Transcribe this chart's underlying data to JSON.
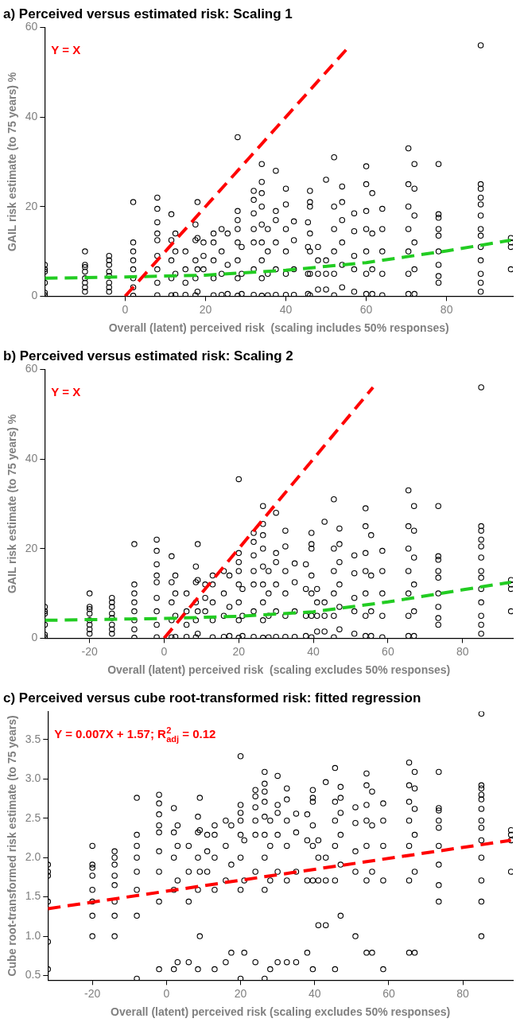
{
  "chart_data": [
    {
      "type": "scatter",
      "title": "a) Perceived versus estimated risk: Scaling 1",
      "xlabel": "Overall (latent) perceived risk  (scaling includes 50% responses)",
      "ylabel": "GAIL risk estimate (to 75 years) %",
      "annotations": [
        "Y = X"
      ],
      "xlim": [
        -20,
        96.5
      ],
      "ylim": [
        0,
        60
      ],
      "xticks": [
        0,
        20,
        40,
        60,
        80
      ],
      "yticks": [
        0,
        20,
        40,
        60
      ],
      "marker": "circle",
      "series": [
        {
          "type": "scatter",
          "color": "#000000",
          "x": [
            -20,
            -20,
            -20,
            -20,
            -20,
            -20,
            -10,
            -10,
            -10,
            -10,
            -10,
            -10,
            -10,
            -10,
            -4,
            -4,
            -4,
            -4,
            -4,
            -4,
            -4,
            -4,
            2,
            2,
            2,
            2,
            2,
            2,
            2,
            2,
            8,
            8,
            8,
            8,
            8,
            8,
            8,
            8,
            8,
            11.5,
            11.5,
            11.5,
            11.5,
            11.5,
            12.5,
            12.5,
            12.5,
            12.5,
            15,
            15,
            15,
            15,
            17.5,
            17.5,
            17.5,
            17.5,
            17.5,
            18,
            18,
            18,
            18,
            19.5,
            19.5,
            19.5,
            22,
            22,
            22,
            22,
            22,
            24,
            24,
            24,
            24,
            25.5,
            25.5,
            25.5,
            28,
            28,
            28,
            28,
            28,
            28,
            28,
            28,
            29,
            29,
            29,
            32,
            32,
            32,
            32,
            32,
            32,
            32,
            34,
            34,
            34,
            34,
            34,
            34,
            34,
            34,
            34,
            35.5,
            35.5,
            35.5,
            35.5,
            37.5,
            37.5,
            37.5,
            37.5,
            37.5,
            37.5,
            40,
            40,
            40,
            40,
            40,
            40,
            42,
            42,
            42,
            42,
            45.5,
            45.5,
            45.5,
            45.5,
            46,
            46,
            46,
            46,
            46,
            46,
            46,
            48,
            48,
            48,
            48,
            50,
            50,
            50,
            50,
            52,
            52,
            52,
            52,
            52,
            52,
            54,
            54,
            54,
            54,
            54,
            54,
            57,
            57,
            57,
            57,
            57,
            60,
            60,
            60,
            60,
            60,
            60,
            60,
            61.5,
            61.5,
            61.5,
            61.5,
            64,
            64,
            64,
            64,
            64,
            70.5,
            70.5,
            70.5,
            70.5,
            70.5,
            70.5,
            70.5,
            72,
            72,
            72,
            72,
            72,
            72,
            78,
            78,
            78,
            78,
            78,
            78,
            78,
            78,
            78,
            88.5,
            88.5,
            88.5,
            88.5,
            88.5,
            88.5,
            88.5,
            88.5,
            88.5,
            88.5,
            88.5,
            88.5,
            88.5,
            96,
            96,
            96,
            96
          ],
          "values": [
            0.2,
            0.8,
            3,
            5.5,
            6,
            7,
            1,
            2,
            3,
            4,
            5.5,
            6.5,
            7,
            10,
            1,
            2,
            3,
            4.5,
            5.5,
            7,
            8,
            9,
            0.1,
            2,
            4,
            6,
            8,
            10,
            12,
            21,
            0.2,
            3,
            6,
            9,
            12.5,
            14,
            16.5,
            19.5,
            22,
            0.2,
            4,
            8,
            12.5,
            18.3,
            0.3,
            5,
            10,
            14,
            0.3,
            3,
            6,
            10,
            0.2,
            4,
            8,
            12.5,
            16,
            1,
            6,
            13,
            21,
            6,
            9,
            12,
            0.2,
            4,
            8,
            12,
            14,
            0.3,
            5,
            10,
            15,
            0.5,
            7,
            14,
            0.1,
            4,
            8,
            12,
            15,
            17,
            19,
            35.5,
            0.5,
            5,
            11,
            0.3,
            6,
            12,
            15,
            18.5,
            21.5,
            23.5,
            0.1,
            4,
            8,
            12,
            16,
            20,
            23,
            25.5,
            29.5,
            0.2,
            5,
            10,
            15,
            0.3,
            6,
            12,
            17,
            19,
            28,
            0.3,
            5,
            10,
            15,
            20.5,
            24,
            0.3,
            6,
            12.5,
            16.7,
            0.5,
            5,
            11,
            16.5,
            0.2,
            5,
            10,
            14,
            20,
            21,
            23.5,
            1.5,
            5,
            8,
            11,
            1.5,
            5,
            8,
            26,
            0.2,
            5,
            10,
            15,
            20,
            31,
            2,
            7,
            12,
            17,
            21,
            24.5,
            1,
            6,
            9,
            14.5,
            18.5,
            0.5,
            5,
            10,
            15,
            19,
            25,
            29,
            0.5,
            6,
            14,
            23,
            0.2,
            5,
            10,
            15,
            19.5,
            0.5,
            5,
            10,
            15,
            20,
            25,
            33,
            0.5,
            6,
            12,
            18,
            24,
            29.5,
            3,
            4.5,
            7,
            10,
            13.5,
            15,
            17.5,
            18.3,
            29.5,
            1,
            3,
            5,
            8,
            11,
            13.5,
            15,
            18,
            20.5,
            22,
            24,
            25,
            56,
            6,
            11,
            12,
            13
          ]
        },
        {
          "type": "line",
          "color": "#ff0000",
          "marker": "none",
          "line_style": "dashed",
          "x": [
            0,
            55
          ],
          "values": [
            0,
            55
          ]
        },
        {
          "type": "line",
          "color": "#22cc22",
          "marker": "none",
          "line_style": "dashed",
          "x": [
            -20,
            0,
            20,
            40,
            60,
            80,
            96
          ],
          "values": [
            4.0,
            4.3,
            4.7,
            5.8,
            7.5,
            10.1,
            12.5
          ]
        }
      ]
    },
    {
      "type": "scatter",
      "title": "b) Perceived versus estimated risk: Scaling 2",
      "xlabel": "Overall (latent) perceived risk  (scaling excludes 50% responses)",
      "ylabel": "GAIL risk estimate (to 75 years) %",
      "annotations": [
        "Y = X"
      ],
      "xlim": [
        -32,
        93.5
      ],
      "ylim": [
        0,
        60
      ],
      "xticks": [
        -20,
        0,
        20,
        40,
        60,
        80
      ],
      "yticks": [
        0,
        20,
        40,
        60
      ],
      "marker": "circle",
      "series": [
        {
          "type": "scatter",
          "color": "#000000",
          "x": [
            -32,
            -32,
            -32,
            -32,
            -32,
            -32,
            -20,
            -20,
            -20,
            -20,
            -20,
            -20,
            -20,
            -20,
            -14,
            -14,
            -14,
            -14,
            -14,
            -14,
            -14,
            -14,
            -8,
            -8,
            -8,
            -8,
            -8,
            -8,
            -8,
            -8,
            -2,
            -2,
            -2,
            -2,
            -2,
            -2,
            -2,
            -2,
            -2,
            2,
            2,
            2,
            2,
            2,
            3,
            3,
            3,
            3,
            6,
            6,
            6,
            6,
            8.5,
            8.5,
            8.5,
            8.5,
            8.5,
            9,
            9,
            9,
            9,
            11,
            11,
            11,
            13,
            13,
            13,
            13,
            13,
            16,
            16,
            16,
            16,
            17.5,
            17.5,
            17.5,
            20,
            20,
            20,
            20,
            20,
            20,
            20,
            20,
            21,
            21,
            21,
            24,
            24,
            24,
            24,
            24,
            24,
            24,
            26.5,
            26.5,
            26.5,
            26.5,
            26.5,
            26.5,
            26.5,
            26.5,
            26.5,
            28,
            28,
            28,
            28,
            30,
            30,
            30,
            30,
            30,
            30,
            32.5,
            32.5,
            32.5,
            32.5,
            32.5,
            32.5,
            35,
            35,
            35,
            35,
            38,
            38,
            38,
            38,
            39.5,
            39.5,
            39.5,
            39.5,
            39.5,
            39.5,
            39.5,
            41,
            41,
            41,
            41,
            43,
            43,
            43,
            43,
            45.5,
            45.5,
            45.5,
            45.5,
            45.5,
            45.5,
            47,
            47,
            47,
            47,
            47,
            47,
            51,
            51,
            51,
            51,
            51,
            54,
            54,
            54,
            54,
            54,
            54,
            54,
            55.5,
            55.5,
            55.5,
            55.5,
            58.5,
            58.5,
            58.5,
            58.5,
            58.5,
            65.5,
            65.5,
            65.5,
            65.5,
            65.5,
            65.5,
            65.5,
            67,
            67,
            67,
            67,
            67,
            67,
            73.5,
            73.5,
            73.5,
            73.5,
            73.5,
            73.5,
            73.5,
            73.5,
            73.5,
            85,
            85,
            85,
            85,
            85,
            85,
            85,
            85,
            85,
            85,
            85,
            85,
            85,
            93,
            93,
            93,
            93
          ],
          "values": [
            0.2,
            0.8,
            3,
            5.5,
            6,
            7,
            1,
            2,
            3,
            4,
            5.5,
            6.5,
            7,
            10,
            1,
            2,
            3,
            4.5,
            5.5,
            7,
            8,
            9,
            0.1,
            2,
            4,
            6,
            8,
            10,
            12,
            21,
            0.2,
            3,
            6,
            9,
            12.5,
            14,
            16.5,
            19.5,
            22,
            0.2,
            4,
            8,
            12.5,
            18.3,
            0.3,
            5,
            10,
            14,
            0.3,
            3,
            6,
            10,
            0.2,
            4,
            8,
            12.5,
            16,
            1,
            6,
            13,
            21,
            6,
            9,
            12,
            0.2,
            4,
            8,
            12,
            14,
            0.3,
            5,
            10,
            15,
            0.5,
            7,
            14,
            0.1,
            4,
            8,
            12,
            15,
            17,
            19,
            35.5,
            0.5,
            5,
            11,
            0.3,
            6,
            12,
            15,
            18.5,
            21.5,
            23.5,
            0.1,
            4,
            8,
            12,
            16,
            20,
            23,
            25.5,
            29.5,
            0.2,
            5,
            10,
            15,
            0.3,
            6,
            12,
            17,
            19,
            28,
            0.3,
            5,
            10,
            15,
            20.5,
            24,
            0.3,
            6,
            12.5,
            16.7,
            0.5,
            5,
            11,
            16.5,
            0.2,
            5,
            10,
            14,
            20,
            21,
            23.5,
            1.5,
            5,
            8,
            11,
            1.5,
            5,
            8,
            26,
            0.2,
            5,
            10,
            15,
            20,
            31,
            2,
            7,
            12,
            17,
            21,
            24.5,
            1,
            6,
            9,
            14.5,
            18.5,
            0.5,
            5,
            10,
            15,
            19,
            25,
            29,
            0.5,
            6,
            14,
            23,
            0.2,
            5,
            10,
            15,
            19.5,
            0.5,
            5,
            10,
            15,
            20,
            25,
            33,
            0.5,
            6,
            12,
            18,
            24,
            29.5,
            3,
            4.5,
            7,
            10,
            13.5,
            15,
            17.5,
            18.3,
            29.5,
            1,
            3,
            5,
            8,
            11,
            13.5,
            15,
            18,
            20.5,
            22,
            24,
            25,
            56,
            6,
            11,
            12,
            13
          ]
        },
        {
          "type": "line",
          "color": "#ff0000",
          "marker": "none",
          "line_style": "dashed",
          "x": [
            0,
            56
          ],
          "values": [
            0,
            56
          ]
        },
        {
          "type": "line",
          "color": "#22cc22",
          "marker": "none",
          "line_style": "dashed",
          "x": [
            -32,
            0,
            20,
            40,
            60,
            80,
            93
          ],
          "values": [
            4.0,
            4.4,
            4.9,
            5.9,
            8.1,
            10.8,
            12.5
          ]
        }
      ]
    },
    {
      "type": "scatter",
      "title": "c) Perceived versus cube root-transformed risk: fitted regression",
      "xlabel": "Overall (latent) perceived risk (scaling excludes 50% responses)",
      "ylabel": "Cube root-transformed risk estimate (to 75 years)",
      "annotations": [
        "Y = 0.007X + 1.57; R$^{2}$$_{adj}$ = 0.12"
      ],
      "xlim": [
        -32,
        93.5
      ],
      "ylim": [
        0.44,
        3.86
      ],
      "xticks": [
        -20,
        0,
        20,
        40,
        60,
        80
      ],
      "yticks": [
        {
          "value": 0.5,
          "label": "0.5"
        },
        {
          "value": 1,
          "label": "1.0"
        },
        {
          "value": 1.5,
          "label": "1.5"
        },
        {
          "value": 2,
          "label": "2.0"
        },
        {
          "value": 2.5,
          "label": "2.5"
        },
        {
          "value": 3,
          "label": "3.0"
        },
        {
          "value": 3.5,
          "label": "3.5"
        }
      ],
      "marker": "circle",
      "series": [
        {
          "type": "scatter",
          "color": "#000000",
          "x": [
            -32,
            -32,
            -32,
            -32,
            -32,
            -32,
            -20,
            -20,
            -20,
            -20,
            -20,
            -20,
            -20,
            -20,
            -14,
            -14,
            -14,
            -14,
            -14,
            -14,
            -14,
            -14,
            -8,
            -8,
            -8,
            -8,
            -8,
            -8,
            -8,
            -8,
            -2,
            -2,
            -2,
            -2,
            -2,
            -2,
            -2,
            -2,
            -2,
            2,
            2,
            2,
            2,
            2,
            3,
            3,
            3,
            3,
            6,
            6,
            6,
            6,
            8.5,
            8.5,
            8.5,
            8.5,
            8.5,
            9,
            9,
            9,
            9,
            11,
            11,
            11,
            13,
            13,
            13,
            13,
            13,
            16,
            16,
            16,
            16,
            17.5,
            17.5,
            17.5,
            20,
            20,
            20,
            20,
            20,
            20,
            20,
            20,
            21,
            21,
            21,
            24,
            24,
            24,
            24,
            24,
            24,
            24,
            26.5,
            26.5,
            26.5,
            26.5,
            26.5,
            26.5,
            26.5,
            26.5,
            26.5,
            28,
            28,
            28,
            28,
            30,
            30,
            30,
            30,
            30,
            30,
            32.5,
            32.5,
            32.5,
            32.5,
            32.5,
            32.5,
            35,
            35,
            35,
            35,
            38,
            38,
            38,
            38,
            39.5,
            39.5,
            39.5,
            39.5,
            39.5,
            39.5,
            39.5,
            41,
            41,
            41,
            41,
            43,
            43,
            43,
            43,
            45.5,
            45.5,
            45.5,
            45.5,
            45.5,
            45.5,
            47,
            47,
            47,
            47,
            47,
            47,
            51,
            51,
            51,
            51,
            51,
            54,
            54,
            54,
            54,
            54,
            54,
            54,
            55.5,
            55.5,
            55.5,
            55.5,
            58.5,
            58.5,
            58.5,
            58.5,
            58.5,
            65.5,
            65.5,
            65.5,
            65.5,
            65.5,
            65.5,
            65.5,
            67,
            67,
            67,
            67,
            67,
            67,
            73.5,
            73.5,
            73.5,
            73.5,
            73.5,
            73.5,
            73.5,
            73.5,
            73.5,
            85,
            85,
            85,
            85,
            85,
            85,
            85,
            85,
            85,
            85,
            85,
            85,
            85,
            93,
            93,
            93,
            93
          ],
          "values": [
            0.58,
            0.93,
            1.44,
            1.77,
            1.82,
            1.91,
            1.0,
            1.26,
            1.44,
            1.59,
            1.77,
            1.87,
            1.91,
            2.15,
            1.0,
            1.26,
            1.44,
            1.65,
            1.77,
            1.91,
            2.0,
            2.08,
            0.46,
            1.26,
            1.59,
            1.82,
            2.0,
            2.15,
            2.29,
            2.76,
            0.58,
            1.44,
            1.82,
            2.08,
            2.32,
            2.41,
            2.55,
            2.69,
            2.8,
            0.58,
            1.59,
            2.0,
            2.32,
            2.63,
            0.67,
            1.71,
            2.15,
            2.41,
            0.67,
            1.44,
            1.82,
            2.15,
            0.58,
            1.59,
            2.0,
            2.32,
            2.52,
            1.0,
            1.82,
            2.35,
            2.76,
            1.82,
            2.08,
            2.29,
            0.58,
            1.59,
            2.0,
            2.29,
            2.41,
            0.67,
            1.71,
            2.15,
            2.47,
            0.79,
            1.91,
            2.41,
            0.46,
            1.59,
            2.0,
            2.29,
            2.47,
            2.57,
            2.67,
            3.29,
            0.79,
            1.71,
            2.22,
            0.67,
            1.82,
            2.29,
            2.47,
            2.64,
            2.78,
            2.86,
            0.46,
            1.59,
            2.0,
            2.29,
            2.52,
            2.71,
            2.84,
            2.94,
            3.09,
            0.58,
            1.71,
            2.15,
            2.47,
            0.67,
            1.82,
            2.29,
            2.57,
            2.67,
            3.04,
            0.67,
            1.71,
            2.15,
            2.47,
            2.74,
            2.88,
            0.67,
            1.82,
            2.32,
            2.56,
            0.79,
            1.71,
            2.22,
            2.55,
            0.58,
            1.71,
            2.15,
            2.41,
            2.71,
            2.76,
            2.86,
            1.14,
            1.71,
            2.0,
            2.22,
            1.14,
            1.71,
            2.0,
            2.96,
            0.58,
            1.71,
            2.15,
            2.47,
            2.71,
            3.14,
            1.26,
            1.91,
            2.29,
            2.57,
            2.76,
            2.9,
            1.0,
            1.82,
            2.08,
            2.44,
            2.64,
            0.79,
            1.71,
            2.15,
            2.47,
            2.67,
            2.92,
            3.07,
            0.79,
            1.82,
            2.41,
            2.84,
            0.58,
            1.71,
            2.15,
            2.47,
            2.69,
            0.79,
            1.71,
            2.15,
            2.47,
            2.71,
            2.92,
            3.21,
            0.79,
            1.82,
            2.29,
            2.62,
            2.88,
            3.09,
            1.44,
            1.65,
            1.91,
            2.15,
            2.38,
            2.47,
            2.6,
            2.63,
            3.09,
            1.0,
            1.44,
            1.71,
            2.0,
            2.22,
            2.38,
            2.47,
            2.62,
            2.74,
            2.8,
            2.88,
            2.92,
            3.83,
            1.82,
            2.22,
            2.29,
            2.35
          ]
        },
        {
          "type": "line",
          "color": "#ff0000",
          "marker": "none",
          "line_style": "dashed",
          "x": [
            -32,
            93
          ],
          "values": [
            1.35,
            2.22
          ]
        }
      ]
    }
  ]
}
